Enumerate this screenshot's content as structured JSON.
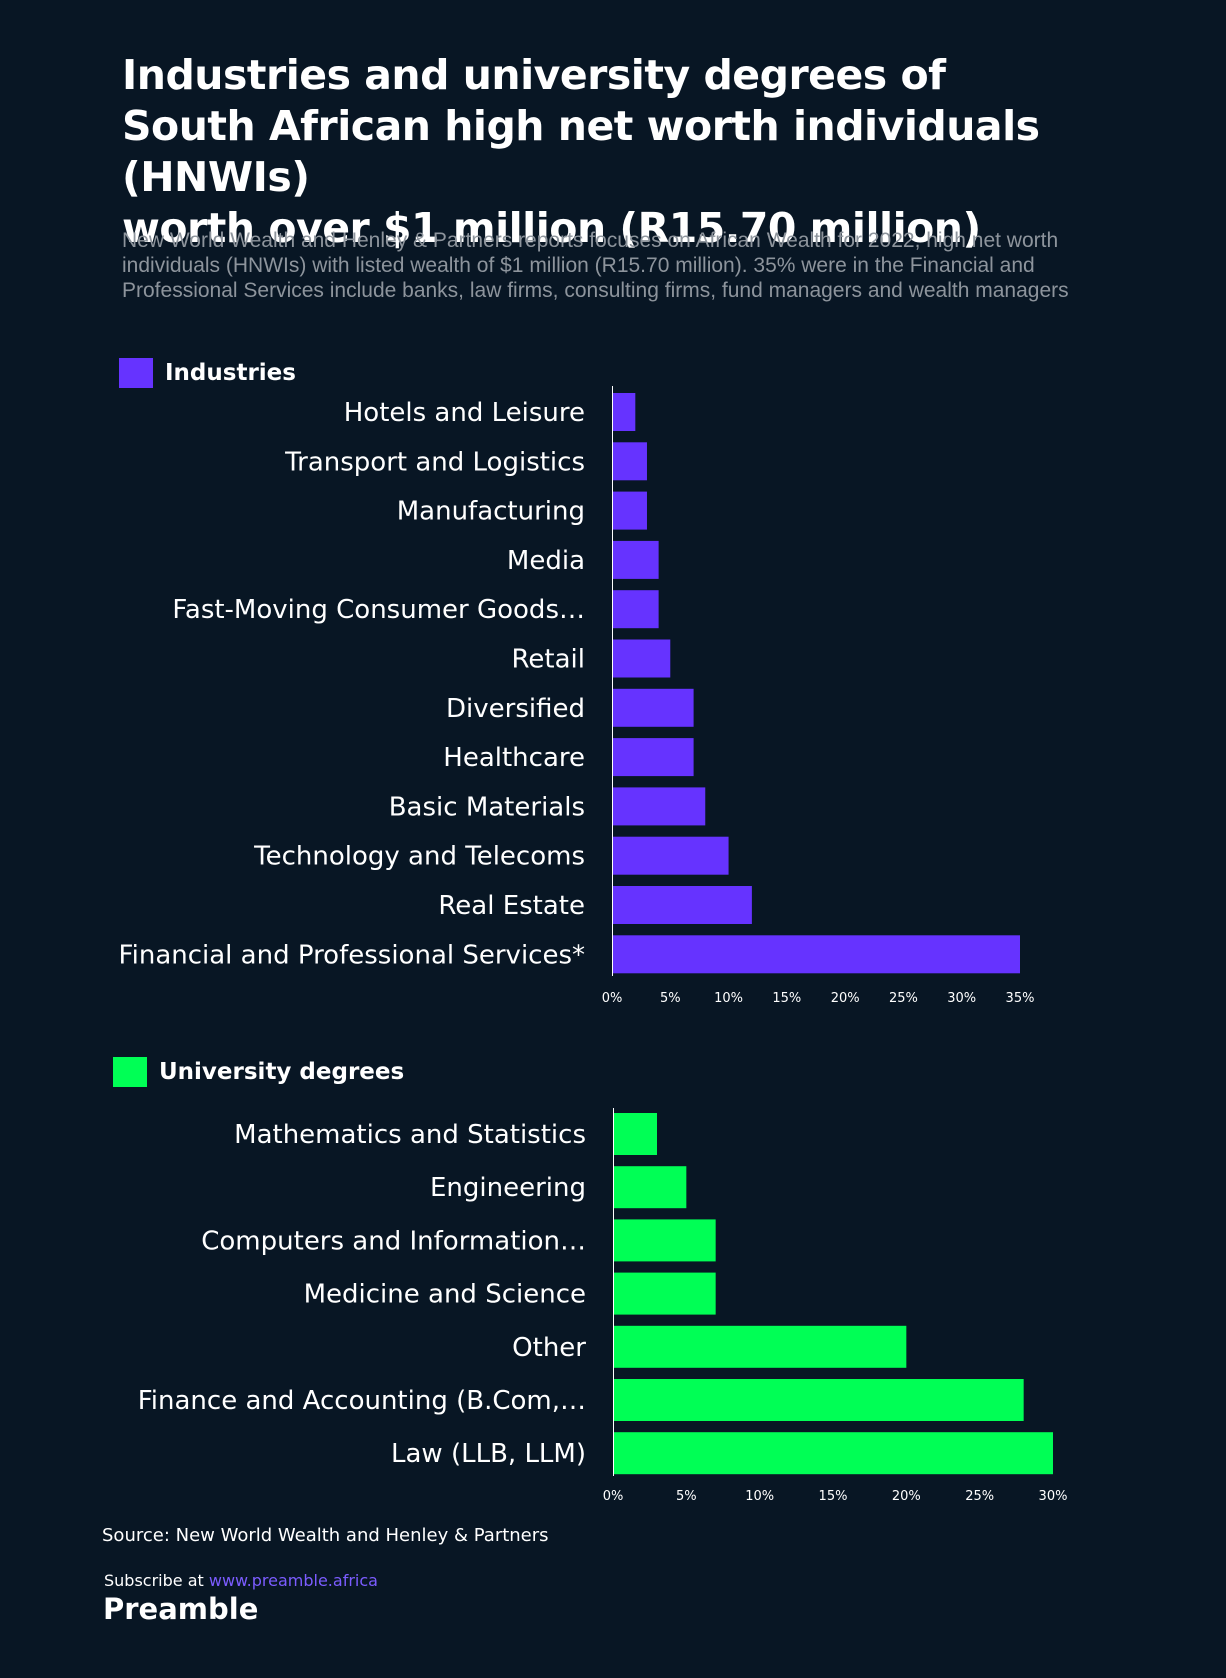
{
  "title_lines": [
    "Industries and university degrees of",
    "South African high net worth individuals (HNWIs)",
    "worth over $1 million (R15.70 million)"
  ],
  "subtitle": "New World Wealth and Henley & Partners reports focuses on African Wealth for 2022, high net worth individuals (HNWIs) with listed wealth of $1 million (R15.70 million). 35% were in the Financial and Professional Services include banks, law firms, consulting firms, fund managers and wealth managers",
  "colors": {
    "background": "#081624",
    "industries": "#6633ff",
    "degrees": "#00ff55",
    "subtle_text": "#8d949c",
    "link": "#7b5cff"
  },
  "chart_data": [
    {
      "type": "bar",
      "orientation": "horizontal",
      "legend": "Industries",
      "categories": [
        "Hotels and Leisure",
        "Transport and Logistics",
        "Manufacturing",
        "Media",
        "Fast-Moving Consumer Goods…",
        "Retail",
        "Diversified",
        "Healthcare",
        "Basic Materials",
        "Technology and Telecoms",
        "Real Estate",
        "Financial and Professional Services*"
      ],
      "values": [
        2,
        3,
        3,
        4,
        4,
        5,
        7,
        7,
        8,
        10,
        12,
        35
      ],
      "xticks": [
        "0%",
        "5%",
        "10%",
        "15%",
        "20%",
        "25%",
        "30%",
        "35%"
      ],
      "xlim": [
        0,
        35
      ],
      "unit": "%"
    },
    {
      "type": "bar",
      "orientation": "horizontal",
      "legend": "University degrees",
      "categories": [
        "Mathematics and Statistics",
        "Engineering",
        "Computers and Information…",
        "Medicine and Science",
        "Other",
        "Finance and Accounting (B.Com,…",
        "Law (LLB, LLM)"
      ],
      "values": [
        3,
        5,
        7,
        7,
        20,
        28,
        30
      ],
      "xticks": [
        "0%",
        "5%",
        "10%",
        "15%",
        "20%",
        "25%",
        "30%"
      ],
      "xlim": [
        0,
        30
      ],
      "unit": "%"
    }
  ],
  "source": "Source: New World Wealth and Henley & Partners",
  "subscribe_prefix": "Subscribe at ",
  "subscribe_link": "www.preamble.africa",
  "brand": "Preamble"
}
